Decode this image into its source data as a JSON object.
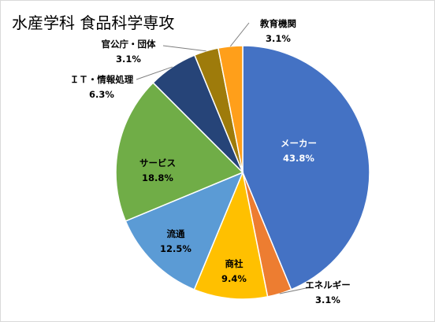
{
  "chart_data": {
    "type": "pie",
    "title": "水産学科 食品科学専攻",
    "categories": [
      "メーカー",
      "エネルギー",
      "商社",
      "流通",
      "サービス",
      "ＩＴ・情報処理",
      "官公庁・団体",
      "教育機関"
    ],
    "values": [
      43.8,
      3.1,
      9.4,
      12.5,
      18.8,
      6.3,
      3.1,
      3.1
    ],
    "value_labels": [
      "43.8%",
      "3.1%",
      "9.4%",
      "12.5%",
      "18.8%",
      "6.3%",
      "3.1%",
      "3.1%"
    ],
    "colors": [
      "#4472c4",
      "#ed7d31",
      "#ffc000",
      "#5b9bd5",
      "#70ad47",
      "#264478",
      "#9e7b0b",
      "#ff9f1a"
    ],
    "start_angle": "12 o'clock, clockwise",
    "legend": "none (data labels with category name and percentage)"
  }
}
